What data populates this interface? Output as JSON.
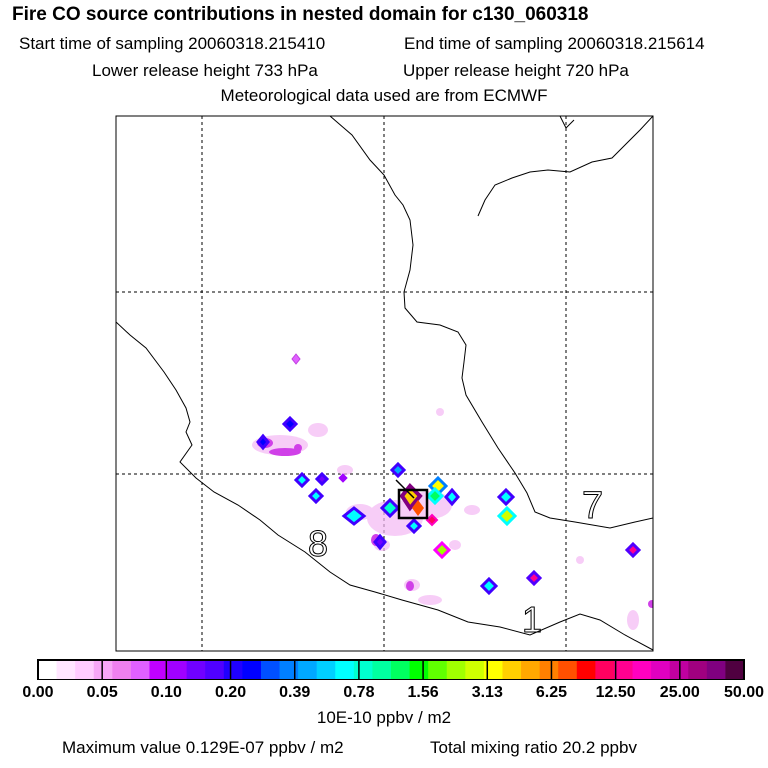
{
  "header": {
    "title": "Fire CO source contributions in nested domain for c130_060318",
    "start_time": "Start time of sampling 20060318.215410",
    "end_time": "End time of sampling 20060318.215614",
    "lower_height": "Lower release height  733 hPa",
    "upper_height": "Upper release height  720 hPa",
    "met_data": "Meteorological data used are from ECMWF"
  },
  "map": {
    "labels": [
      "8",
      "7",
      "1"
    ]
  },
  "colorbar": {
    "ticks": [
      "0.00",
      "0.05",
      "0.10",
      "0.20",
      "0.39",
      "0.78",
      "1.56",
      "3.13",
      "6.25",
      "12.50",
      "25.00",
      "50.00"
    ],
    "colors": [
      "#ffffff",
      "#ffe6ff",
      "#ffccff",
      "#f7a6f7",
      "#ef80ef",
      "#e060ff",
      "#c000ff",
      "#a000ff",
      "#7000ff",
      "#5000ff",
      "#2000ff",
      "#0000ff",
      "#0050ff",
      "#0080ff",
      "#00a8ff",
      "#00d0ff",
      "#00ffff",
      "#00ffd0",
      "#00ffa0",
      "#00ff60",
      "#00ff00",
      "#60ff00",
      "#a0ff00",
      "#d0ff00",
      "#ffff00",
      "#ffd000",
      "#ffa800",
      "#ff8000",
      "#ff5000",
      "#ff0000",
      "#ff0060",
      "#ff0090",
      "#ff00c0",
      "#e000c0",
      "#c000a0",
      "#a00080",
      "#800080",
      "#500040"
    ],
    "unit": "10E-10 ppbv / m2"
  },
  "footer": {
    "max_value": "Maximum value  0.129E-07 ppbv / m2",
    "total": "Total mixing ratio       20.2 ppbv"
  }
}
